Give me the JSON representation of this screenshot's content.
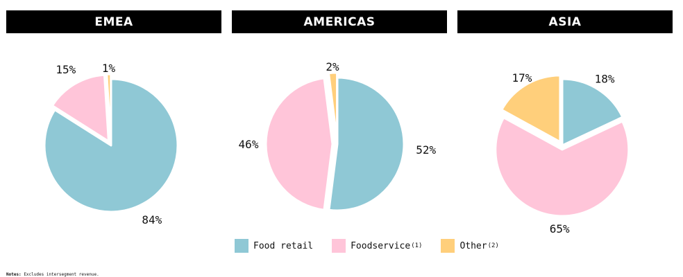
{
  "colors": {
    "food_retail": "#8fc8d5",
    "foodservice": "#ffc5d9",
    "other": "#ffcf7b"
  },
  "legend": [
    {
      "label": "Food retail",
      "note": "",
      "color_key": "food_retail"
    },
    {
      "label": "Foodservice",
      "note": "(1)",
      "color_key": "foodservice"
    },
    {
      "label": "Other",
      "note": "(2)",
      "color_key": "other"
    }
  ],
  "notes": {
    "label": "Notes:",
    "text": "Excludes intersegment revenue."
  },
  "chart_data": [
    {
      "type": "pie",
      "title": "EMEA",
      "slices": [
        {
          "category": "Food retail",
          "value": 84,
          "label": "84%"
        },
        {
          "category": "Foodservice",
          "value": 15,
          "label": "15%"
        },
        {
          "category": "Other",
          "value": 1,
          "label": "1%"
        }
      ]
    },
    {
      "type": "pie",
      "title": "AMERICAS",
      "slices": [
        {
          "category": "Food retail",
          "value": 52,
          "label": "52%"
        },
        {
          "category": "Foodservice",
          "value": 46,
          "label": "46%"
        },
        {
          "category": "Other",
          "value": 2,
          "label": "2%"
        }
      ]
    },
    {
      "type": "pie",
      "title": "ASIA",
      "slices": [
        {
          "category": "Food retail",
          "value": 18,
          "label": "18%"
        },
        {
          "category": "Foodservice",
          "value": 65,
          "label": "65%"
        },
        {
          "category": "Other",
          "value": 17,
          "label": "17%"
        }
      ]
    }
  ]
}
